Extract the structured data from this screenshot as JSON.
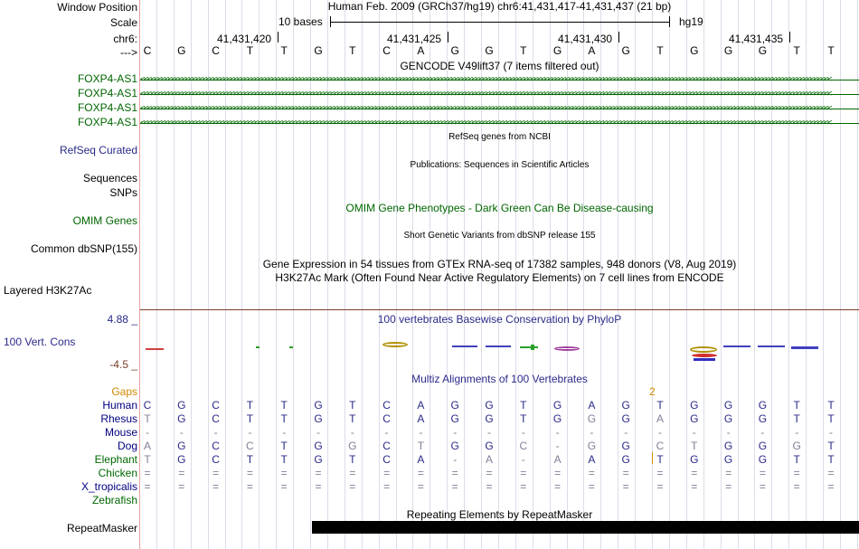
{
  "ui": {
    "grid_color": "#dcdce8",
    "navy": "#2a2a8a",
    "green": "#006600",
    "gray": "#808098",
    "gap_color": "#d08a00"
  },
  "header": {
    "window_position_label": "Window Position",
    "scale_label": "Scale",
    "chrom_label": "chr6:",
    "arrow_label": "--->",
    "assembly_text": "Human Feb. 2009 (GRCh37/hg19)   chr6:41,431,417-41,431,437 (21 bp)",
    "scale_text": "10 bases",
    "scale_db": "hg19",
    "coords": [
      "41,431,420",
      "41,431,425",
      "41,431,430",
      "41,431,435"
    ],
    "sequence": [
      "C",
      "G",
      "C",
      "T",
      "T",
      "G",
      "T",
      "C",
      "A",
      "G",
      "G",
      "T",
      "G",
      "A",
      "G",
      "T",
      "G",
      "G",
      "G",
      "T",
      "T"
    ]
  },
  "gencode": {
    "title": "GENCODE V49lift37 (7 items filtered out)",
    "items": [
      "FOXP4-AS1",
      "FOXP4-AS1",
      "FOXP4-AS1",
      "FOXP4-AS1"
    ]
  },
  "tracks": {
    "refseq_title": "RefSeq genes from NCBI",
    "refseq_label": "RefSeq Curated",
    "pubs_title": "Publications: Sequences in Scientific Articles",
    "sequences_label": "Sequences",
    "snps_label": "SNPs",
    "omim_title": "OMIM Gene Phenotypes - Dark Green Can Be Disease-causing",
    "omim_label": "OMIM Genes",
    "dbsnp_title": "Short Genetic Variants from dbSNP release 155",
    "dbsnp_label": "Common dbSNP(155)",
    "gtex_title": "Gene Expression in 54 tissues from GTEx RNA-seq of 17382 samples, 948 donors (V8, Aug 2019)",
    "h3k27_title": "H3K27Ac Mark (Often Found Near Active Regulatory Elements) on 7 cell lines from ENCODE",
    "h3k27_label": "Layered H3K27Ac",
    "phylop_title": "100 vertebrates Basewise Conservation by PhyloP",
    "phylop_max": "4.88 _",
    "phylop_label": "100 Vert. Cons",
    "phylop_min": "-4.5 _",
    "multiz_title": "Multiz Alignments of 100 Vertebrates",
    "gaps_label": "Gaps",
    "gap_count": "2",
    "repeat_title": "Repeating Elements by RepeatMasker",
    "repeat_label": "RepeatMasker"
  },
  "alignment": [
    {
      "species": "Human",
      "bases": [
        "C",
        "G",
        "C",
        "T",
        "T",
        "G",
        "T",
        "C",
        "A",
        "G",
        "G",
        "T",
        "G",
        "A",
        "G",
        "T",
        "G",
        "G",
        "G",
        "T",
        "T"
      ]
    },
    {
      "species": "Rhesus",
      "bases": [
        "T",
        "G",
        "C",
        "T",
        "T",
        "G",
        "T",
        "C",
        "A",
        "G",
        "G",
        "T",
        "G",
        "G",
        "G",
        "A",
        "G",
        "G",
        "G",
        "T",
        "T"
      ]
    },
    {
      "species": "Mouse",
      "bases": [
        "-",
        "-",
        "-",
        "-",
        "-",
        "-",
        "-",
        "-",
        "-",
        "-",
        "-",
        "-",
        "-",
        "-",
        "-",
        "-",
        "-",
        "-",
        "-",
        "-",
        "-"
      ]
    },
    {
      "species": "Dog",
      "bases": [
        "A",
        "G",
        "C",
        "C",
        "T",
        "G",
        "G",
        "C",
        "T",
        "G",
        "G",
        "C",
        "-",
        "G",
        "G",
        "C",
        "T",
        "G",
        "G",
        "G",
        "T"
      ]
    },
    {
      "species": "Elephant",
      "bases": [
        "T",
        "G",
        "C",
        "T",
        "T",
        "G",
        "T",
        "C",
        "A",
        "-",
        "A",
        "-",
        "A",
        "A",
        "G",
        "T",
        "G",
        "G",
        "G",
        "T",
        "T"
      ]
    },
    {
      "species": "Chicken",
      "bases": [
        "=",
        "=",
        "=",
        "=",
        "=",
        "=",
        "=",
        "=",
        "=",
        "=",
        "=",
        "=",
        "=",
        "=",
        "=",
        "=",
        "=",
        "=",
        "=",
        "=",
        "="
      ]
    },
    {
      "species": "X_tropicalis",
      "bases": [
        "=",
        "=",
        "=",
        "=",
        "=",
        "=",
        "=",
        "=",
        "=",
        "=",
        "=",
        "=",
        "=",
        "=",
        "=",
        "=",
        "=",
        "=",
        "=",
        "=",
        "="
      ]
    },
    {
      "species": "Zebrafish",
      "bases": []
    }
  ]
}
